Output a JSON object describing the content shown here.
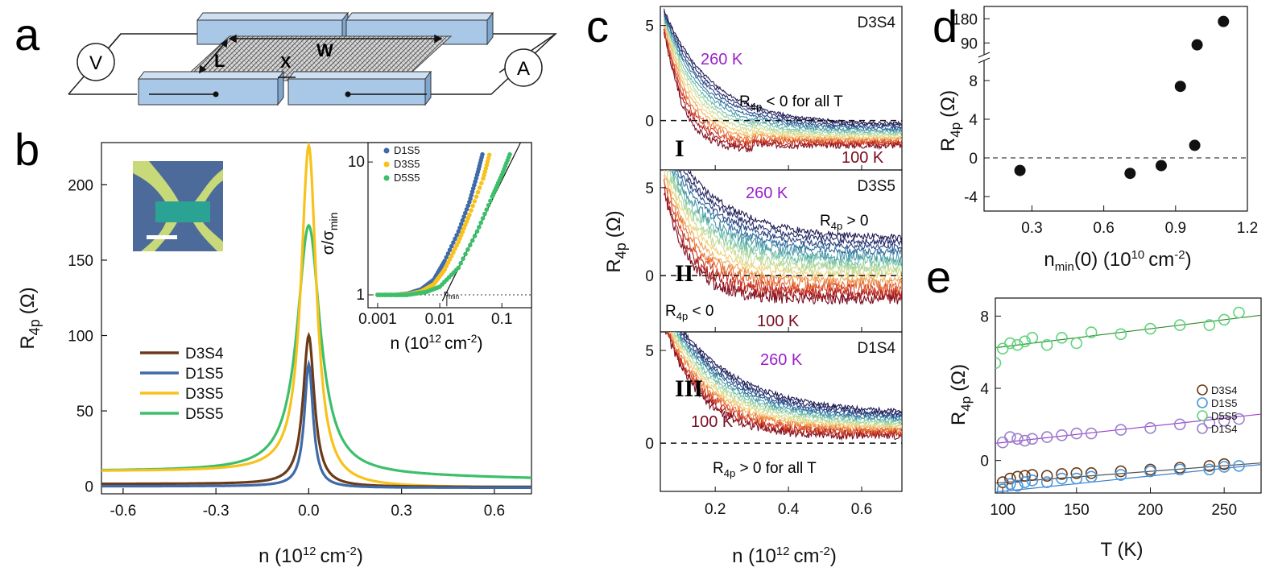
{
  "panels": {
    "a": {
      "letter": "a",
      "voltmeter_label": "V",
      "ammeter_label": "A",
      "dim_L": "L",
      "dim_W": "W",
      "dim_X": "X"
    },
    "b": {
      "letter": "b",
      "ylabel_main": "R",
      "ylabel_sub": "4p",
      "ylabel_unit": "(Ω)",
      "xlabel": "n (10",
      "xlabel_sup": "12",
      "xlabel_unit": "cm",
      "xlabel_unit_sup": "-2",
      "xlabel_close": ")",
      "xticks": [
        "-0.6",
        "-0.3",
        "0.0",
        "0.3",
        "0.6"
      ],
      "yticks": [
        "0",
        "50",
        "100",
        "150",
        "200"
      ],
      "inset": {
        "ylabel": "σ/σ",
        "ylabel_sub": "min",
        "xlabel": "n (10",
        "xlabel_sup": "12",
        "xlabel_unit": "cm",
        "xlabel_unit_sup": "-2",
        "xlabel_close": ")",
        "xticks": [
          "0.001",
          "0.01",
          "0.1"
        ],
        "yticks": [
          "1",
          "10"
        ],
        "nmin_label": "n",
        "nmin_sub": "min",
        "legend": [
          "D1S5",
          "D3S5",
          "D5S5"
        ]
      }
    },
    "c": {
      "letter": "c",
      "ylabel_main": "R",
      "ylabel_sub": "4p",
      "ylabel_unit": "(Ω)",
      "xlabel": "n (10",
      "xlabel_sup": "12",
      "xlabel_unit": "cm",
      "xlabel_unit_sup": "-2",
      "xlabel_close": ")",
      "xticks": [
        "0.2",
        "0.4",
        "0.6"
      ],
      "subpanels": [
        {
          "device": "D3S4",
          "roman": "I",
          "hot": "260 K",
          "cold": "100 K",
          "ann_main": "R",
          "ann_sub": "4p",
          "ann_rest": " < 0 for all T",
          "yticks": [
            "5",
            "0"
          ]
        },
        {
          "device": "D3S5",
          "roman": "II",
          "hot": "260 K",
          "cold": "100 K",
          "ann_main": "R",
          "ann_sub": "4p",
          "ann_rest": " > 0",
          "ann2_main": "R",
          "ann2_sub": "4p",
          "ann2_rest": " < 0",
          "yticks": [
            "5",
            "0"
          ]
        },
        {
          "device": "D1S4",
          "roman": "III",
          "hot": "260 K",
          "cold": "100 K",
          "ann_main": "R",
          "ann_sub": "4p",
          "ann_rest": " > 0 for all T",
          "yticks": [
            "5",
            "0"
          ]
        }
      ]
    },
    "d": {
      "letter": "d",
      "ylabel_main": "R",
      "ylabel_sub": "4p",
      "ylabel_unit": "(Ω)",
      "xlabel": "n",
      "xlabel_sub": "min",
      "xlabel_rest": "(0) (10",
      "xlabel_sup": "10",
      "xlabel_unit": "cm",
      "xlabel_unit_sup": "-2",
      "xlabel_close": ")",
      "xticks": [
        "0.3",
        "0.6",
        "0.9",
        "1.2"
      ],
      "yticks_lower": [
        "-4",
        "0",
        "4",
        "8"
      ],
      "yticks_upper": [
        "90",
        "180"
      ]
    },
    "e": {
      "letter": "e",
      "ylabel_main": "R",
      "ylabel_sub": "4p",
      "ylabel_unit": "(Ω)",
      "xlabel": "T (K)",
      "xticks": [
        "100",
        "150",
        "200",
        "250"
      ],
      "yticks": [
        "0",
        "4",
        "8"
      ],
      "legend": [
        "D3S4",
        "D1S5",
        "D5S5",
        "D1S4"
      ]
    }
  },
  "colors": {
    "D3S4": "#6b3a18",
    "D1S5": "#3f6aa8",
    "D3S5": "#f7c21b",
    "D5S5": "#3cbf6a",
    "purple": "#9a1fc9",
    "darkred": "#7a0b1e",
    "block": "#a9c8e8"
  },
  "chart_data": [
    {
      "panel": "b",
      "type": "line",
      "title": "",
      "xlabel": "n (10^12 cm^-2)",
      "ylabel": "R4p (Ω)",
      "xlim": [
        -0.67,
        0.72
      ],
      "ylim": [
        -5,
        228
      ],
      "series": [
        {
          "name": "D3S4",
          "peak": 100,
          "width": 0.022,
          "base_left": 1.5,
          "base_right": -0.5
        },
        {
          "name": "D1S5",
          "peak": 81,
          "width": 0.017,
          "base_left": 0,
          "base_right": -1
        },
        {
          "name": "D3S5",
          "peak": 226,
          "width": 0.03,
          "base_left": 10,
          "base_right": -1
        },
        {
          "name": "D5S5",
          "peak": 173,
          "width": 0.045,
          "base_left": 10,
          "base_right": 5
        }
      ]
    },
    {
      "panel": "b-inset",
      "type": "scatter",
      "xscale": "log",
      "yscale": "log",
      "xlim": [
        0.0007,
        0.3
      ],
      "ylim": [
        0.8,
        14
      ],
      "series": [
        {
          "name": "D1S5",
          "x": [
            0.001,
            0.002,
            0.003,
            0.005,
            0.008,
            0.012,
            0.02,
            0.03,
            0.04,
            0.05
          ],
          "y": [
            1,
            1,
            1.02,
            1.1,
            1.3,
            1.8,
            3,
            5,
            8,
            12
          ]
        },
        {
          "name": "D3S5",
          "x": [
            0.001,
            0.002,
            0.003,
            0.005,
            0.008,
            0.012,
            0.02,
            0.03,
            0.05,
            0.065
          ],
          "y": [
            1,
            1,
            1.01,
            1.06,
            1.2,
            1.55,
            2.5,
            4,
            7.5,
            12
          ]
        },
        {
          "name": "D5S5",
          "x": [
            0.001,
            0.002,
            0.003,
            0.006,
            0.01,
            0.02,
            0.04,
            0.07,
            0.1,
            0.14
          ],
          "y": [
            1,
            1,
            1,
            1.05,
            1.15,
            1.6,
            3,
            5.5,
            8,
            12
          ]
        }
      ]
    },
    {
      "panel": "d",
      "type": "scatter",
      "xlabel": "nmin(0) (10^10 cm^-2)",
      "ylabel": "R4p (Ω)",
      "xlim": [
        0.1,
        1.2
      ],
      "x": [
        0.25,
        0.71,
        0.84,
        0.92,
        0.98,
        0.99,
        1.1
      ],
      "y": [
        -1.3,
        -1.6,
        -0.8,
        7.4,
        1.3,
        83,
        170
      ]
    },
    {
      "panel": "e",
      "type": "scatter",
      "xlabel": "T (K)",
      "ylabel": "R4p (Ω)",
      "xlim": [
        95,
        275
      ],
      "ylim": [
        -1.8,
        9
      ],
      "x": [
        100,
        105,
        110,
        115,
        120,
        130,
        140,
        150,
        160,
        180,
        200,
        220,
        240,
        250,
        260
      ],
      "series": [
        {
          "name": "D3S4",
          "values": [
            -1.2,
            -1.0,
            -0.9,
            -0.85,
            -0.8,
            -0.85,
            -0.75,
            -0.7,
            -0.7,
            -0.6,
            -0.5,
            -0.4,
            -0.3,
            -0.2,
            null
          ]
        },
        {
          "name": "D1S5",
          "values": [
            -1.6,
            -1.3,
            -1.4,
            -1.2,
            -1.1,
            -1.2,
            -1.0,
            -1.0,
            -0.9,
            -0.8,
            -0.6,
            -0.5,
            -0.5,
            -0.35,
            -0.3
          ]
        },
        {
          "name": "D5S5",
          "values": [
            6.2,
            6.5,
            6.4,
            6.6,
            6.8,
            6.4,
            6.8,
            6.5,
            7.1,
            7.0,
            7.3,
            7.5,
            7.5,
            7.8,
            8.2
          ]
        },
        {
          "name": "D1S4",
          "values": [
            1.0,
            1.3,
            1.2,
            1.1,
            1.2,
            1.3,
            1.4,
            1.5,
            1.5,
            1.7,
            1.8,
            2.0,
            2.1,
            2.2,
            2.3
          ]
        }
      ]
    }
  ]
}
